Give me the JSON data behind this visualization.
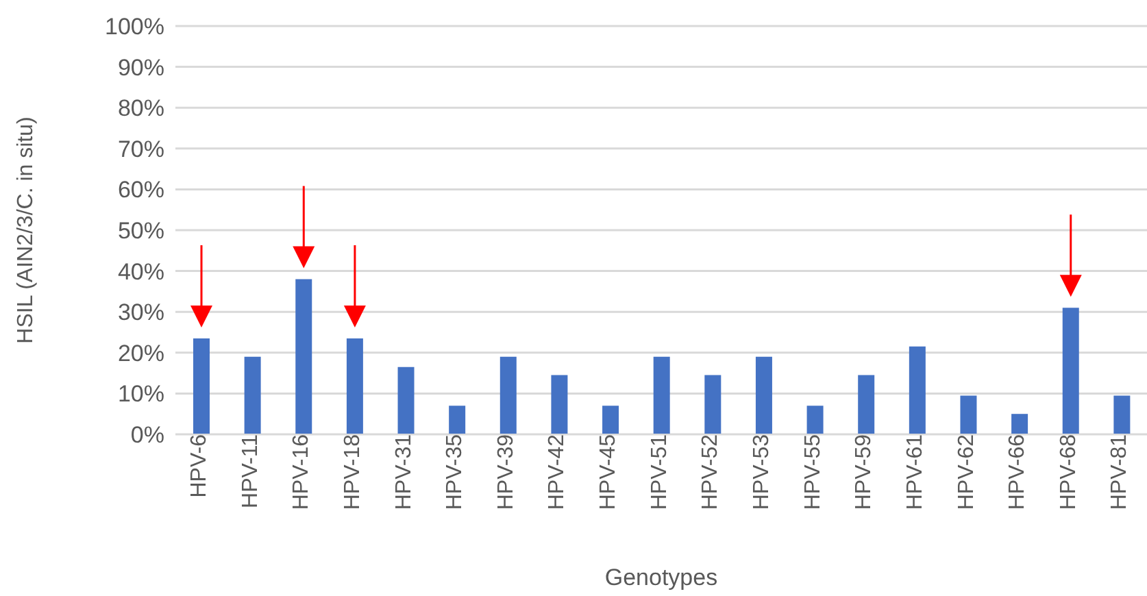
{
  "chart_data": {
    "type": "bar",
    "xlabel": "Genotypes",
    "ylabel": "HSIL (AIN2/3/C. in situ)",
    "categories": [
      "HPV-6",
      "HPV-11",
      "HPV-16",
      "HPV-18",
      "HPV-31",
      "HPV-35",
      "HPV-39",
      "HPV-42",
      "HPV-45",
      "HPV-51",
      "HPV-52",
      "HPV-53",
      "HPV-55",
      "HPV-59",
      "HPV-61",
      "HPV-62",
      "HPV-66",
      "HPV-68",
      "HPV-81"
    ],
    "values": [
      23.5,
      19,
      38,
      23.5,
      16.5,
      7,
      19,
      14.5,
      7,
      19,
      14.5,
      19,
      7,
      14.5,
      21.5,
      9.5,
      5,
      31,
      9.5
    ],
    "color": "#4472c4",
    "ylim": [
      0,
      100
    ],
    "yticks": [
      {
        "value": 0,
        "label": "0%"
      },
      {
        "value": 10,
        "label": "10%"
      },
      {
        "value": 20,
        "label": "20%"
      },
      {
        "value": 30,
        "label": "30%"
      },
      {
        "value": 40,
        "label": "40%"
      },
      {
        "value": 50,
        "label": "50%"
      },
      {
        "value": 60,
        "label": "60%"
      },
      {
        "value": 70,
        "label": "70%"
      },
      {
        "value": 80,
        "label": "80%"
      },
      {
        "value": 90,
        "label": "90%"
      },
      {
        "value": 100,
        "label": "100%"
      }
    ],
    "grid": "y",
    "legend": false
  }
}
